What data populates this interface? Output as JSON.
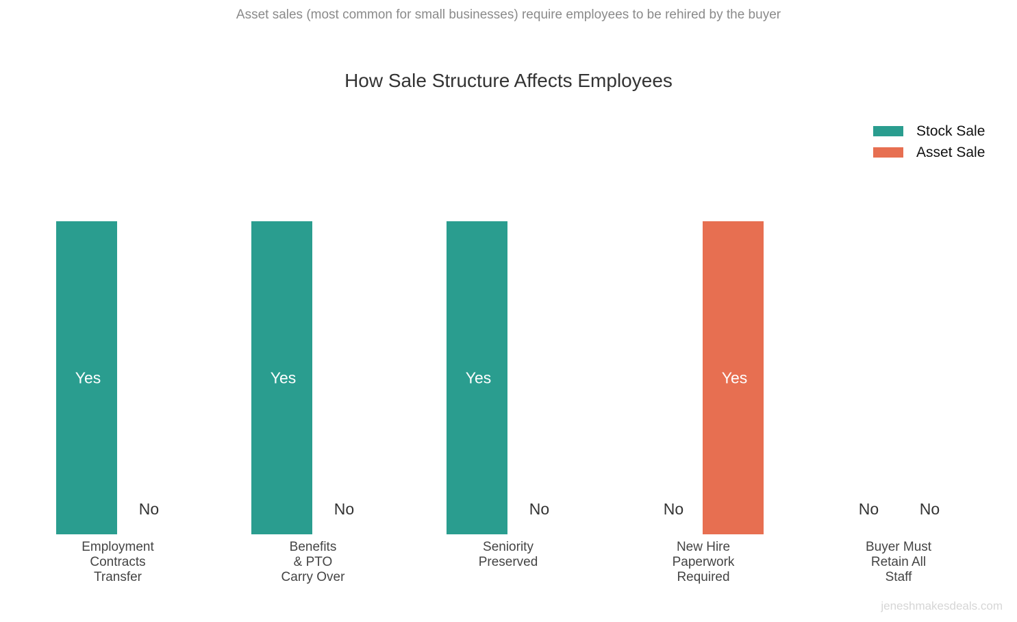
{
  "subtitle": "Asset sales (most common for small businesses) require employees to be rehired by the buyer",
  "title": "How Sale Structure Affects Employees",
  "watermark": "jeneshmakesdeals.com",
  "colors": {
    "stock": "#2a9d8f",
    "asset": "#e76f51"
  },
  "chart_data": {
    "type": "bar",
    "title": "How Sale Structure Affects Employees",
    "subtitle": "Asset sales (most common for small businesses) require employees to be rehired by the buyer",
    "categories": [
      [
        "Employment",
        "Contracts",
        "Transfer"
      ],
      [
        "Benefits",
        "& PTO",
        "Carry Over"
      ],
      [
        "Seniority",
        "Preserved"
      ],
      [
        "New Hire",
        "Paperwork",
        "Required"
      ],
      [
        "Buyer Must",
        "Retain All",
        "Staff"
      ]
    ],
    "series": [
      {
        "name": "Stock Sale",
        "color": "#2a9d8f",
        "values": [
          1,
          1,
          1,
          0,
          0
        ],
        "labels": [
          "Yes",
          "Yes",
          "Yes",
          "No",
          "No"
        ]
      },
      {
        "name": "Asset Sale",
        "color": "#e76f51",
        "values": [
          0,
          0,
          0,
          1,
          0
        ],
        "labels": [
          "No",
          "No",
          "No",
          "Yes",
          "No"
        ]
      }
    ],
    "ylim": [
      0,
      1
    ],
    "grid": false,
    "legend": "top-right",
    "xlabel": "",
    "ylabel": ""
  }
}
